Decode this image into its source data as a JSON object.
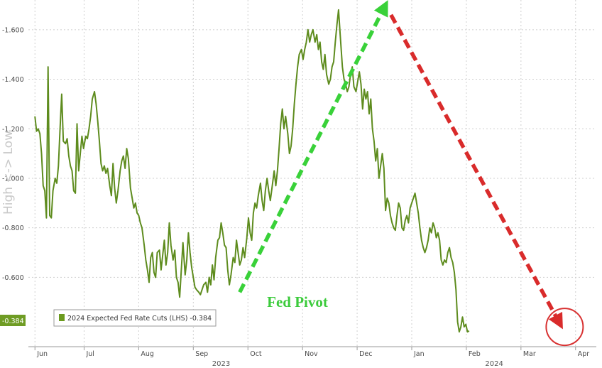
{
  "chart_data": {
    "type": "line",
    "title": "",
    "ylabel": "High <-> Low",
    "ylim": [
      -0.32,
      -1.72
    ],
    "y_axis_inverted": true,
    "grid": true,
    "yticks": [
      "-1.600",
      "-1.400",
      "-1.200",
      "-1.000",
      "-0.800",
      "-0.600"
    ],
    "months": [
      {
        "label": "Jun",
        "t": 0
      },
      {
        "label": "Jul",
        "t": 0.9
      },
      {
        "label": "Aug",
        "t": 1.9
      },
      {
        "label": "Sep",
        "t": 2.9
      },
      {
        "label": "Oct",
        "t": 3.9
      },
      {
        "label": "Nov",
        "t": 4.9
      },
      {
        "label": "Dec",
        "t": 5.9
      },
      {
        "label": "Jan",
        "t": 6.9
      },
      {
        "label": "Feb",
        "t": 7.9
      },
      {
        "label": "Mar",
        "t": 8.9
      },
      {
        "label": "Apr",
        "t": 9.9
      }
    ],
    "years": [
      {
        "label": "2023",
        "t": 3.4
      },
      {
        "label": "2024",
        "t": 8.4
      }
    ],
    "legend": {
      "placement": "bottom-left",
      "label": "2024 Expected Fed Rate Cuts (LHS) -0.384"
    },
    "last_value_label": "-0.384",
    "colors": {
      "series": "#5e8c1e",
      "legend_swatch": "#6b9a1e",
      "last_value_bg": "#6f9c24",
      "up_arrow": "#39d139",
      "down_arrow": "#d92b2b",
      "circle": "#d83232",
      "grid": "#cfcfcf"
    },
    "annotations": [
      {
        "type": "arrow",
        "color": "green",
        "from_t": 3.75,
        "from_y": -0.54,
        "to_t": 6.42,
        "to_y": -1.7
      },
      {
        "type": "arrow",
        "color": "red",
        "from_t": 6.52,
        "from_y": -1.66,
        "to_t": 9.62,
        "to_y": -0.41
      },
      {
        "type": "text",
        "text": "Fed Pivot",
        "t": 4.25,
        "y": -0.48
      },
      {
        "type": "circle",
        "t": 9.7,
        "y": -0.4
      }
    ],
    "series": [
      {
        "values": [
          [
            0.0,
            -1.25
          ],
          [
            0.03,
            -1.19
          ],
          [
            0.06,
            -1.2
          ],
          [
            0.09,
            -1.18
          ],
          [
            0.12,
            -1.1
          ],
          [
            0.15,
            -0.97
          ],
          [
            0.18,
            -0.95
          ],
          [
            0.21,
            -0.84
          ],
          [
            0.24,
            -1.45
          ],
          [
            0.27,
            -0.85
          ],
          [
            0.3,
            -0.84
          ],
          [
            0.33,
            -0.95
          ],
          [
            0.37,
            -1.0
          ],
          [
            0.4,
            -0.98
          ],
          [
            0.43,
            -1.05
          ],
          [
            0.46,
            -1.2
          ],
          [
            0.49,
            -1.34
          ],
          [
            0.52,
            -1.15
          ],
          [
            0.56,
            -1.14
          ],
          [
            0.59,
            -1.16
          ],
          [
            0.62,
            -1.09
          ],
          [
            0.65,
            -1.05
          ],
          [
            0.68,
            -1.03
          ],
          [
            0.71,
            -0.95
          ],
          [
            0.74,
            -0.94
          ],
          [
            0.77,
            -1.22
          ],
          [
            0.8,
            -1.03
          ],
          [
            0.83,
            -1.1
          ],
          [
            0.86,
            -1.17
          ],
          [
            0.89,
            -1.12
          ],
          [
            0.93,
            -1.17
          ],
          [
            0.96,
            -1.16
          ],
          [
            0.99,
            -1.2
          ],
          [
            1.02,
            -1.25
          ],
          [
            1.05,
            -1.32
          ],
          [
            1.09,
            -1.35
          ],
          [
            1.12,
            -1.3
          ],
          [
            1.15,
            -1.23
          ],
          [
            1.18,
            -1.15
          ],
          [
            1.21,
            -1.06
          ],
          [
            1.24,
            -1.03
          ],
          [
            1.27,
            -1.05
          ],
          [
            1.3,
            -1.02
          ],
          [
            1.33,
            -1.04
          ],
          [
            1.37,
            -0.97
          ],
          [
            1.4,
            -0.93
          ],
          [
            1.43,
            -1.06
          ],
          [
            1.46,
            -0.96
          ],
          [
            1.49,
            -0.9
          ],
          [
            1.52,
            -0.95
          ],
          [
            1.56,
            -1.03
          ],
          [
            1.59,
            -1.07
          ],
          [
            1.62,
            -1.09
          ],
          [
            1.65,
            -1.04
          ],
          [
            1.68,
            -1.12
          ],
          [
            1.71,
            -1.08
          ],
          [
            1.75,
            -0.96
          ],
          [
            1.78,
            -0.92
          ],
          [
            1.81,
            -0.88
          ],
          [
            1.84,
            -0.9
          ],
          [
            1.87,
            -0.86
          ],
          [
            1.9,
            -0.85
          ],
          [
            1.93,
            -0.82
          ],
          [
            1.96,
            -0.8
          ],
          [
            2.0,
            -0.73
          ],
          [
            2.03,
            -0.67
          ],
          [
            2.06,
            -0.63
          ],
          [
            2.09,
            -0.58
          ],
          [
            2.12,
            -0.68
          ],
          [
            2.15,
            -0.7
          ],
          [
            2.18,
            -0.62
          ],
          [
            2.21,
            -0.6
          ],
          [
            2.24,
            -0.7
          ],
          [
            2.28,
            -0.71
          ],
          [
            2.31,
            -0.63
          ],
          [
            2.34,
            -0.69
          ],
          [
            2.37,
            -0.75
          ],
          [
            2.4,
            -0.65
          ],
          [
            2.43,
            -0.7
          ],
          [
            2.46,
            -0.82
          ],
          [
            2.49,
            -0.73
          ],
          [
            2.53,
            -0.67
          ],
          [
            2.56,
            -0.71
          ],
          [
            2.59,
            -0.6
          ],
          [
            2.62,
            -0.58
          ],
          [
            2.65,
            -0.52
          ],
          [
            2.68,
            -0.63
          ],
          [
            2.71,
            -0.74
          ],
          [
            2.75,
            -0.61
          ],
          [
            2.78,
            -0.67
          ],
          [
            2.81,
            -0.78
          ],
          [
            2.84,
            -0.7
          ],
          [
            2.87,
            -0.64
          ],
          [
            2.9,
            -0.6
          ],
          [
            2.93,
            -0.56
          ],
          [
            2.96,
            -0.55
          ],
          [
            3.0,
            -0.54
          ],
          [
            3.03,
            -0.53
          ],
          [
            3.06,
            -0.55
          ],
          [
            3.09,
            -0.57
          ],
          [
            3.13,
            -0.58
          ],
          [
            3.16,
            -0.54
          ],
          [
            3.19,
            -0.6
          ],
          [
            3.22,
            -0.57
          ],
          [
            3.25,
            -0.65
          ],
          [
            3.28,
            -0.59
          ],
          [
            3.31,
            -0.68
          ],
          [
            3.35,
            -0.75
          ],
          [
            3.38,
            -0.76
          ],
          [
            3.41,
            -0.82
          ],
          [
            3.44,
            -0.78
          ],
          [
            3.47,
            -0.73
          ],
          [
            3.5,
            -0.72
          ],
          [
            3.53,
            -0.63
          ],
          [
            3.56,
            -0.57
          ],
          [
            3.59,
            -0.61
          ],
          [
            3.63,
            -0.68
          ],
          [
            3.66,
            -0.66
          ],
          [
            3.69,
            -0.75
          ],
          [
            3.72,
            -0.7
          ],
          [
            3.75,
            -0.65
          ],
          [
            3.78,
            -0.67
          ],
          [
            3.81,
            -0.72
          ],
          [
            3.84,
            -0.68
          ],
          [
            3.88,
            -0.76
          ],
          [
            3.91,
            -0.84
          ],
          [
            3.94,
            -0.78
          ],
          [
            3.97,
            -0.75
          ],
          [
            4.0,
            -0.86
          ],
          [
            4.03,
            -0.9
          ],
          [
            4.06,
            -0.88
          ],
          [
            4.09,
            -0.93
          ],
          [
            4.13,
            -0.98
          ],
          [
            4.16,
            -0.91
          ],
          [
            4.19,
            -0.87
          ],
          [
            4.22,
            -0.95
          ],
          [
            4.25,
            -1.0
          ],
          [
            4.28,
            -0.95
          ],
          [
            4.31,
            -0.91
          ],
          [
            4.34,
            -0.96
          ],
          [
            4.38,
            -1.03
          ],
          [
            4.41,
            -0.97
          ],
          [
            4.44,
            -1.03
          ],
          [
            4.47,
            -1.12
          ],
          [
            4.5,
            -1.22
          ],
          [
            4.53,
            -1.28
          ],
          [
            4.56,
            -1.2
          ],
          [
            4.59,
            -1.25
          ],
          [
            4.63,
            -1.18
          ],
          [
            4.66,
            -1.1
          ],
          [
            4.69,
            -1.13
          ],
          [
            4.72,
            -1.2
          ],
          [
            4.75,
            -1.3
          ],
          [
            4.78,
            -1.38
          ],
          [
            4.81,
            -1.45
          ],
          [
            4.84,
            -1.5
          ],
          [
            4.88,
            -1.52
          ],
          [
            4.91,
            -1.48
          ],
          [
            4.94,
            -1.52
          ],
          [
            4.97,
            -1.55
          ],
          [
            5.0,
            -1.6
          ],
          [
            5.03,
            -1.55
          ],
          [
            5.06,
            -1.58
          ],
          [
            5.09,
            -1.6
          ],
          [
            5.13,
            -1.55
          ],
          [
            5.16,
            -1.58
          ],
          [
            5.19,
            -1.52
          ],
          [
            5.22,
            -1.55
          ],
          [
            5.25,
            -1.47
          ],
          [
            5.28,
            -1.44
          ],
          [
            5.31,
            -1.5
          ],
          [
            5.34,
            -1.42
          ],
          [
            5.38,
            -1.38
          ],
          [
            5.41,
            -1.4
          ],
          [
            5.44,
            -1.45
          ],
          [
            5.47,
            -1.47
          ],
          [
            5.5,
            -1.55
          ],
          [
            5.53,
            -1.62
          ],
          [
            5.56,
            -1.68
          ],
          [
            5.59,
            -1.58
          ],
          [
            5.63,
            -1.45
          ],
          [
            5.66,
            -1.4
          ],
          [
            5.69,
            -1.38
          ],
          [
            5.72,
            -1.35
          ],
          [
            5.75,
            -1.37
          ],
          [
            5.78,
            -1.42
          ],
          [
            5.81,
            -1.45
          ],
          [
            5.84,
            -1.37
          ],
          [
            5.88,
            -1.35
          ],
          [
            5.91,
            -1.39
          ],
          [
            5.94,
            -1.43
          ],
          [
            5.97,
            -1.38
          ],
          [
            6.0,
            -1.28
          ],
          [
            6.03,
            -1.36
          ],
          [
            6.06,
            -1.32
          ],
          [
            6.09,
            -1.35
          ],
          [
            6.12,
            -1.26
          ],
          [
            6.15,
            -1.32
          ],
          [
            6.18,
            -1.2
          ],
          [
            6.21,
            -1.15
          ],
          [
            6.24,
            -1.07
          ],
          [
            6.27,
            -1.12
          ],
          [
            6.3,
            -1.0
          ],
          [
            6.33,
            -1.05
          ],
          [
            6.36,
            -1.1
          ],
          [
            6.39,
            -1.04
          ],
          [
            6.42,
            -0.87
          ],
          [
            6.45,
            -0.92
          ],
          [
            6.48,
            -0.9
          ],
          [
            6.51,
            -0.85
          ],
          [
            6.54,
            -0.82
          ],
          [
            6.57,
            -0.8
          ],
          [
            6.6,
            -0.79
          ],
          [
            6.63,
            -0.85
          ],
          [
            6.66,
            -0.9
          ],
          [
            6.69,
            -0.88
          ],
          [
            6.72,
            -0.8
          ],
          [
            6.75,
            -0.79
          ],
          [
            6.78,
            -0.83
          ],
          [
            6.81,
            -0.85
          ],
          [
            6.84,
            -0.82
          ],
          [
            6.87,
            -0.88
          ],
          [
            6.9,
            -0.9
          ],
          [
            6.93,
            -0.92
          ],
          [
            6.96,
            -0.94
          ],
          [
            6.99,
            -0.9
          ],
          [
            7.02,
            -0.86
          ],
          [
            7.05,
            -0.8
          ],
          [
            7.08,
            -0.75
          ],
          [
            7.11,
            -0.72
          ],
          [
            7.14,
            -0.7
          ],
          [
            7.17,
            -0.72
          ],
          [
            7.2,
            -0.75
          ],
          [
            7.23,
            -0.8
          ],
          [
            7.26,
            -0.78
          ],
          [
            7.29,
            -0.82
          ],
          [
            7.32,
            -0.8
          ],
          [
            7.35,
            -0.76
          ],
          [
            7.38,
            -0.78
          ],
          [
            7.41,
            -0.75
          ],
          [
            7.44,
            -0.67
          ],
          [
            7.47,
            -0.65
          ],
          [
            7.5,
            -0.67
          ],
          [
            7.53,
            -0.66
          ],
          [
            7.56,
            -0.7
          ],
          [
            7.59,
            -0.72
          ],
          [
            7.62,
            -0.68
          ],
          [
            7.65,
            -0.66
          ],
          [
            7.68,
            -0.62
          ],
          [
            7.71,
            -0.55
          ],
          [
            7.74,
            -0.42
          ],
          [
            7.77,
            -0.38
          ],
          [
            7.8,
            -0.4
          ],
          [
            7.83,
            -0.44
          ],
          [
            7.86,
            -0.4
          ],
          [
            7.89,
            -0.41
          ],
          [
            7.92,
            -0.38
          ],
          [
            7.95,
            -0.384
          ]
        ]
      }
    ]
  }
}
